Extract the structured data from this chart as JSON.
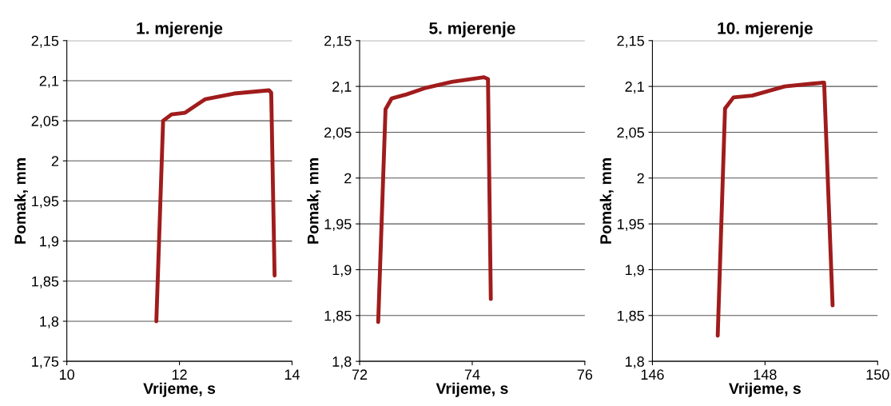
{
  "chart_data": [
    {
      "type": "line",
      "title": "1. mjerenje",
      "xlabel": "Vrijeme, s",
      "ylabel": "Pomak, mm",
      "grid": "y",
      "line_style": "solid",
      "marker": "none",
      "series": [
        {
          "color": "#a01c1c",
          "x": [
            11.59,
            11.71,
            11.86,
            12.1,
            12.46,
            12.97,
            13.59,
            13.63,
            13.69
          ],
          "values": [
            1.8,
            2.05,
            2.058,
            2.06,
            2.077,
            2.084,
            2.088,
            2.085,
            1.857
          ]
        }
      ],
      "xlim": [
        10,
        14
      ],
      "xticks": [
        10,
        12,
        14
      ],
      "ylim": [
        1.75,
        2.15
      ],
      "yticks": [
        {
          "value": 1.75,
          "label": "1,75"
        },
        {
          "value": 1.8,
          "label": "1,8"
        },
        {
          "value": 1.85,
          "label": "1,85"
        },
        {
          "value": 1.9,
          "label": "1,9"
        },
        {
          "value": 1.95,
          "label": "1,95"
        },
        2,
        {
          "value": 2.05,
          "label": "2,05"
        },
        {
          "value": 2.1,
          "label": "2,1"
        },
        {
          "value": 2.15,
          "label": "2,15"
        }
      ]
    },
    {
      "type": "line",
      "title": "5. mjerenje",
      "xlabel": "Vrijeme, s",
      "ylabel": "Pomak, mm",
      "grid": "y",
      "line_style": "solid",
      "marker": "none",
      "series": [
        {
          "color": "#a01c1c",
          "x": [
            72.33,
            72.46,
            72.57,
            72.82,
            73.15,
            73.64,
            74.21,
            74.28,
            74.33
          ],
          "values": [
            1.843,
            2.075,
            2.087,
            2.091,
            2.098,
            2.105,
            2.11,
            2.108,
            1.868
          ]
        }
      ],
      "xlim": [
        72,
        76
      ],
      "xticks": [
        72,
        74,
        76
      ],
      "ylim": [
        1.8,
        2.15
      ],
      "yticks": [
        {
          "value": 1.8,
          "label": "1,8"
        },
        {
          "value": 1.85,
          "label": "1,85"
        },
        {
          "value": 1.9,
          "label": "1,9"
        },
        {
          "value": 1.95,
          "label": "1,95"
        },
        2,
        {
          "value": 2.05,
          "label": "2,05"
        },
        {
          "value": 2.1,
          "label": "2,1"
        },
        {
          "value": 2.15,
          "label": "2,15"
        }
      ]
    },
    {
      "type": "line",
      "title": "10. mjerenje",
      "xlabel": "Vrijeme, s",
      "ylabel": "Pomak, mm",
      "grid": "y",
      "line_style": "solid",
      "marker": "none",
      "series": [
        {
          "color": "#a01c1c",
          "x": [
            147.16,
            147.29,
            147.44,
            147.77,
            148.35,
            149.0,
            149.05,
            149.2
          ],
          "values": [
            1.828,
            2.076,
            2.088,
            2.09,
            2.1,
            2.104,
            2.104,
            1.861
          ]
        }
      ],
      "xlim": [
        146,
        150
      ],
      "xticks": [
        146,
        148,
        150
      ],
      "ylim": [
        1.8,
        2.15
      ],
      "yticks": [
        {
          "value": 1.8,
          "label": "1,8"
        },
        {
          "value": 1.85,
          "label": "1,85"
        },
        {
          "value": 1.9,
          "label": "1,9"
        },
        {
          "value": 1.95,
          "label": "1,95"
        },
        2,
        {
          "value": 2.05,
          "label": "2,05"
        },
        {
          "value": 2.1,
          "label": "2,1"
        },
        {
          "value": 2.15,
          "label": "2,15"
        }
      ]
    }
  ]
}
